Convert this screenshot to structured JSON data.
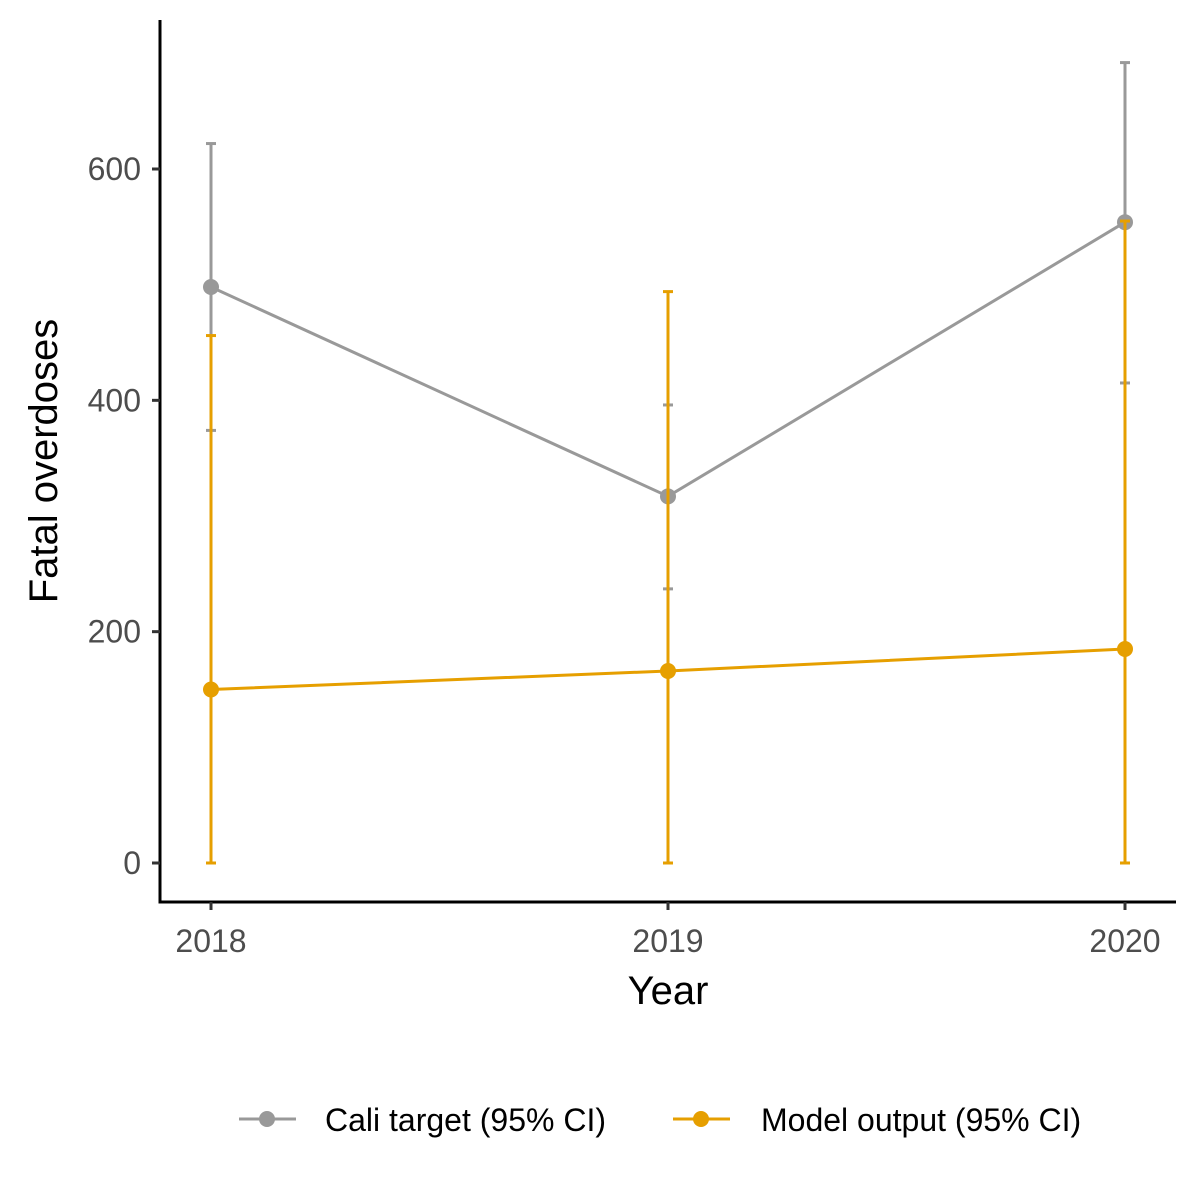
{
  "chart_data": {
    "type": "line",
    "x": [
      2018,
      2019,
      2020
    ],
    "xlabel": "Year",
    "ylabel": "Fatal overdoses",
    "ylim": [
      -33,
      710
    ],
    "yticks": [
      0,
      200,
      400,
      600
    ],
    "grid": false,
    "legend_position": "bottom",
    "series": [
      {
        "name": "Cali target (95% CI)",
        "color": "#999999",
        "values": [
          498,
          317,
          554
        ],
        "ci_lower": [
          374,
          237,
          415
        ],
        "ci_upper": [
          622,
          396,
          692
        ]
      },
      {
        "name": "Model output (95% CI)",
        "color": "#E69F00",
        "values": [
          150,
          166,
          185
        ],
        "ci_lower": [
          0,
          0,
          0
        ],
        "ci_upper": [
          456,
          494,
          555
        ]
      }
    ]
  }
}
